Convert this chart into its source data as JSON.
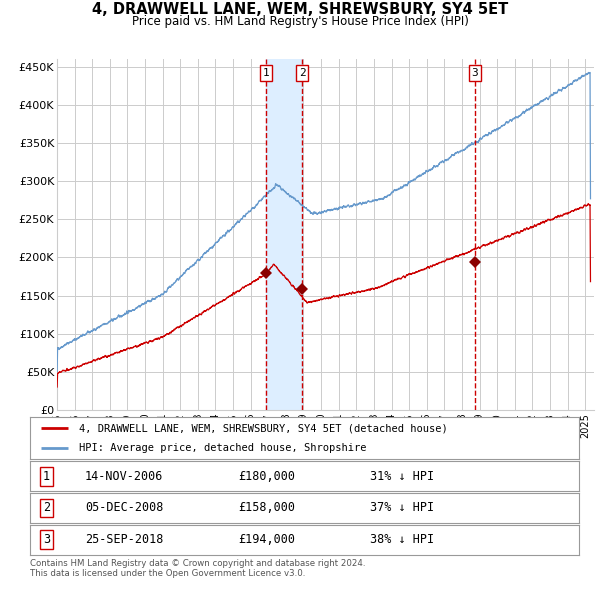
{
  "title": "4, DRAWWELL LANE, WEM, SHREWSBURY, SY4 5ET",
  "subtitle": "Price paid vs. HM Land Registry's House Price Index (HPI)",
  "legend_red": "4, DRAWWELL LANE, WEM, SHREWSBURY, SY4 5ET (detached house)",
  "legend_blue": "HPI: Average price, detached house, Shropshire",
  "footer": "Contains HM Land Registry data © Crown copyright and database right 2024.\nThis data is licensed under the Open Government Licence v3.0.",
  "transactions": [
    {
      "num": 1,
      "date": "14-NOV-2006",
      "price": 180000,
      "pct": "31% ↓ HPI",
      "date_val": 2006.87
    },
    {
      "num": 2,
      "date": "05-DEC-2008",
      "price": 158000,
      "pct": "37% ↓ HPI",
      "date_val": 2008.92
    },
    {
      "num": 3,
      "date": "25-SEP-2018",
      "price": 194000,
      "pct": "38% ↓ HPI",
      "date_val": 2018.73
    }
  ],
  "ylim": [
    0,
    460000
  ],
  "yticks": [
    0,
    50000,
    100000,
    150000,
    200000,
    250000,
    300000,
    350000,
    400000,
    450000
  ],
  "ytick_labels": [
    "£0",
    "£50K",
    "£100K",
    "£150K",
    "£200K",
    "£250K",
    "£300K",
    "£350K",
    "£400K",
    "£450K"
  ],
  "xstart": 1995.0,
  "xend": 2025.5,
  "red_color": "#cc0000",
  "blue_color": "#6699cc",
  "shade_color": "#ddeeff",
  "grid_color": "#cccccc",
  "bg_color": "#ffffff"
}
